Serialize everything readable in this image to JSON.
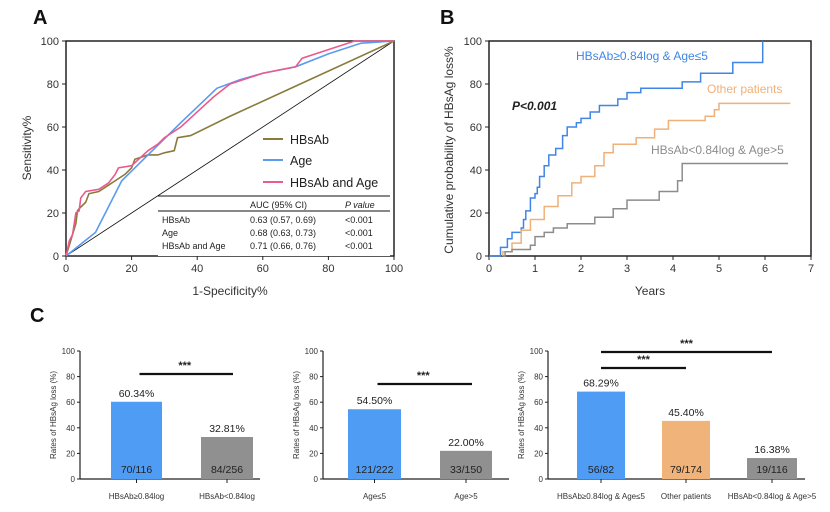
{
  "colors": {
    "hbsab": "#8a7a3c",
    "age": "#5b9bef",
    "combined": "#ea5b8c",
    "blue": "#3f86e6",
    "orange": "#efb07a",
    "gray": "#8c8c8c",
    "bar_blue": "#4f9cf5",
    "bar_gray": "#909090",
    "bar_orange": "#f0b47a"
  },
  "chart_data": [
    {
      "panel": "A",
      "type": "line",
      "xlabel": "1-Specificity%",
      "ylabel": "Sensitivity%",
      "xlim": [
        0,
        100
      ],
      "ylim": [
        0,
        100
      ],
      "xticks": [
        "0",
        "20",
        "40",
        "60",
        "80",
        "100"
      ],
      "yticks": [
        "0",
        "20",
        "40",
        "60",
        "80",
        "100"
      ],
      "legend_position": "right",
      "series": [
        {
          "name": "HBsAb",
          "color": "hbsab",
          "points": [
            [
              0,
              0
            ],
            [
              1,
              5
            ],
            [
              2,
              10
            ],
            [
              3,
              15
            ],
            [
              3.5,
              21
            ],
            [
              4,
              22
            ],
            [
              6,
              25
            ],
            [
              7,
              29
            ],
            [
              10,
              30
            ],
            [
              13,
              33
            ],
            [
              15,
              35
            ],
            [
              18,
              38
            ],
            [
              20,
              41
            ],
            [
              21,
              45
            ],
            [
              25,
              47
            ],
            [
              28,
              47
            ],
            [
              30,
              48
            ],
            [
              33,
              49
            ],
            [
              34,
              55
            ],
            [
              38,
              56
            ],
            [
              50,
              65
            ],
            [
              70,
              79
            ],
            [
              100,
              100
            ]
          ]
        },
        {
          "name": "Age",
          "color": "age",
          "points": [
            [
              0,
              0
            ],
            [
              9,
              11
            ],
            [
              17,
              35
            ],
            [
              25,
              47
            ],
            [
              35,
              62
            ],
            [
              46,
              78
            ],
            [
              53,
              82
            ],
            [
              60,
              85
            ],
            [
              70,
              88
            ],
            [
              80,
              94
            ],
            [
              90,
              99
            ],
            [
              100,
              100
            ]
          ]
        },
        {
          "name": "HBsAb and Age",
          "color": "combined",
          "points": [
            [
              0,
              0
            ],
            [
              1,
              7
            ],
            [
              2,
              10
            ],
            [
              3,
              20
            ],
            [
              4,
              21
            ],
            [
              4.5,
              27
            ],
            [
              6,
              30
            ],
            [
              10,
              31
            ],
            [
              13,
              34
            ],
            [
              15,
              38
            ],
            [
              16,
              41
            ],
            [
              20,
              42
            ],
            [
              25,
              49
            ],
            [
              28,
              52
            ],
            [
              30,
              55
            ],
            [
              35,
              60
            ],
            [
              40,
              67
            ],
            [
              45,
              74
            ],
            [
              50,
              80
            ],
            [
              60,
              85
            ],
            [
              70,
              88
            ],
            [
              72,
              92
            ],
            [
              80,
              96
            ],
            [
              88,
              100
            ],
            [
              100,
              100
            ]
          ]
        }
      ],
      "table": {
        "headers": [
          "",
          "AUC (95% CI)",
          "P value"
        ],
        "rows": [
          [
            "HBsAb",
            "0.63 (0.57, 0.69)",
            "<0.001"
          ],
          [
            "Age",
            "0.68 (0.63, 0.73)",
            "<0.001"
          ],
          [
            "HBsAb and Age",
            "0.71 (0.66, 0.76)",
            "<0.001"
          ]
        ]
      }
    },
    {
      "panel": "B",
      "type": "line",
      "xlabel": "Years",
      "ylabel": "Cumulative probability of HBsAg loss%",
      "xlim": [
        0,
        7
      ],
      "ylim": [
        0,
        100
      ],
      "xticks": [
        "0",
        "1",
        "2",
        "3",
        "4",
        "5",
        "6",
        "7"
      ],
      "yticks": [
        "0",
        "20",
        "40",
        "60",
        "80",
        "100"
      ],
      "annotation": "P<0.001",
      "series": [
        {
          "name": "HBsAb≥0.84log & Age≤5",
          "color": "blue",
          "steps": [
            [
              0,
              0
            ],
            [
              0.17,
              0
            ],
            [
              0.25,
              4
            ],
            [
              0.4,
              8
            ],
            [
              0.5,
              11
            ],
            [
              0.7,
              13
            ],
            [
              0.75,
              17
            ],
            [
              0.8,
              21
            ],
            [
              0.9,
              27
            ],
            [
              1,
              29
            ],
            [
              1.05,
              32
            ],
            [
              1.1,
              37
            ],
            [
              1.2,
              42
            ],
            [
              1.3,
              47
            ],
            [
              1.45,
              50
            ],
            [
              1.6,
              56
            ],
            [
              1.7,
              60
            ],
            [
              1.9,
              62
            ],
            [
              2,
              64
            ],
            [
              2.2,
              67
            ],
            [
              2.4,
              70
            ],
            [
              2.8,
              73
            ],
            [
              3,
              76
            ],
            [
              3.3,
              78
            ],
            [
              4.2,
              81
            ],
            [
              4.6,
              85
            ],
            [
              5.3,
              90
            ],
            [
              5.95,
              100
            ]
          ]
        },
        {
          "name": "Other patients",
          "color": "orange",
          "steps": [
            [
              0.3,
              0
            ],
            [
              0.3,
              2
            ],
            [
              0.5,
              6
            ],
            [
              0.7,
              12
            ],
            [
              0.9,
              17
            ],
            [
              1.2,
              23
            ],
            [
              1.5,
              28
            ],
            [
              1.8,
              34
            ],
            [
              2,
              37
            ],
            [
              2.3,
              42
            ],
            [
              2.5,
              48
            ],
            [
              2.7,
              52
            ],
            [
              3.2,
              55
            ],
            [
              3.6,
              59
            ],
            [
              3.9,
              63
            ],
            [
              4.7,
              65
            ],
            [
              4.9,
              68
            ],
            [
              5,
              71
            ],
            [
              6.55,
              71
            ]
          ]
        },
        {
          "name": "HBsAb<0.84log & Age>5",
          "color": "gray",
          "steps": [
            [
              0.3,
              0
            ],
            [
              0.35,
              2
            ],
            [
              0.5,
              3
            ],
            [
              0.9,
              5
            ],
            [
              1,
              9
            ],
            [
              1.2,
              11
            ],
            [
              1.4,
              13
            ],
            [
              1.7,
              15
            ],
            [
              2.3,
              18
            ],
            [
              2.7,
              22
            ],
            [
              3,
              26
            ],
            [
              3.7,
              30
            ],
            [
              4.1,
              35
            ],
            [
              4.2,
              43
            ],
            [
              6.5,
              43
            ]
          ]
        }
      ]
    },
    {
      "panel": "C",
      "type": "bar",
      "ylabel": "Rates of HBsAg loss (%)",
      "ylim": [
        0,
        100
      ],
      "yticks": [
        "0",
        "20",
        "40",
        "60",
        "80",
        "100"
      ],
      "groups": [
        {
          "categories": [
            "HBsAb≥0.84log",
            "HBsAb<0.84log"
          ],
          "values": [
            60.34,
            32.81
          ],
          "labels": [
            "60.34%",
            "32.81%"
          ],
          "counts": [
            "70/116",
            "84/256"
          ],
          "colors": [
            "bar_blue",
            "bar_gray"
          ],
          "significance": [
            {
              "from": 0,
              "to": 1,
              "text": "***"
            }
          ]
        },
        {
          "categories": [
            "Age≤5",
            "Age>5"
          ],
          "values": [
            54.5,
            22.0
          ],
          "labels": [
            "54.50%",
            "22.00%"
          ],
          "counts": [
            "121/222",
            "33/150"
          ],
          "colors": [
            "bar_blue",
            "bar_gray"
          ],
          "significance": [
            {
              "from": 0,
              "to": 1,
              "text": "***"
            }
          ]
        },
        {
          "categories": [
            "HBsAb≥0.84log & Age≤5",
            "Other patients",
            "HBsAb<0.84log & Age>5"
          ],
          "values": [
            68.29,
            45.4,
            16.38
          ],
          "labels": [
            "68.29%",
            "45.40%",
            "16.38%"
          ],
          "counts": [
            "56/82",
            "79/174",
            "19/116"
          ],
          "colors": [
            "bar_blue",
            "bar_orange",
            "bar_gray"
          ],
          "significance": [
            {
              "from": 0,
              "to": 1,
              "text": "***"
            },
            {
              "from": 0,
              "to": 2,
              "text": "***"
            }
          ]
        }
      ]
    }
  ]
}
